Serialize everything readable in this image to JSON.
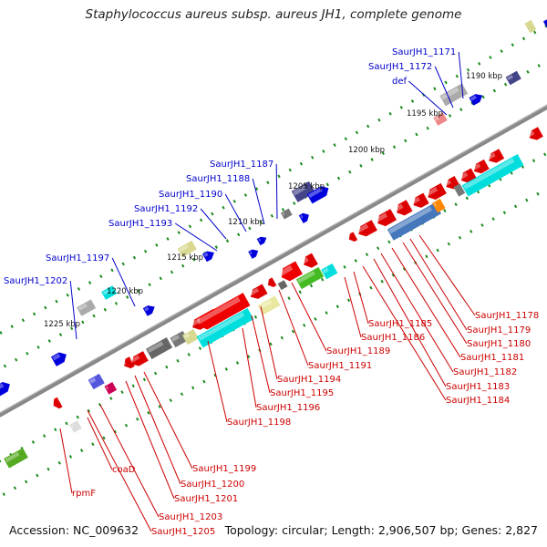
{
  "title": "Staphylococcus aureus subsp. aureus JH1, complete genome",
  "footer": {
    "accession": "Accession: NC_009632",
    "summary": "Topology: circular; Length: 2,906,507 bp; Genes: 2,827"
  },
  "colors": {
    "forward_label": "#0000cc",
    "reverse_label": "#cc0000",
    "backbone": "#888888",
    "tick": "#1a8a1a"
  },
  "kbp_labels": [
    "1190 kbp",
    "1195 kbp",
    "1200 kbp",
    "1205 kbp",
    "1210 kbp",
    "1215 kbp",
    "1220 kbp",
    "1225 kbp"
  ],
  "forward_genes": [
    "SaurJH1_1171",
    "SaurJH1_1172",
    "def",
    "SaurJH1_1187",
    "SaurJH1_1188",
    "SaurJH1_1190",
    "SaurJH1_1192",
    "SaurJH1_1193",
    "SaurJH1_1197",
    "SaurJH1_1202"
  ],
  "reverse_genes": [
    "SaurJH1_1178",
    "SaurJH1_1179",
    "SaurJH1_1180",
    "SaurJH1_1181",
    "SaurJH1_1182",
    "SaurJH1_1183",
    "SaurJH1_1184",
    "SaurJH1_1185",
    "SaurJH1_1186",
    "SaurJH1_1189",
    "SaurJH1_1191",
    "SaurJH1_1194",
    "SaurJH1_1195",
    "SaurJH1_1196",
    "SaurJH1_1198",
    "SaurJH1_1199",
    "SaurJH1_1200",
    "SaurJH1_1201",
    "SaurJH1_1203",
    "SaurJH1_1205",
    "coaD",
    "rpmF"
  ]
}
